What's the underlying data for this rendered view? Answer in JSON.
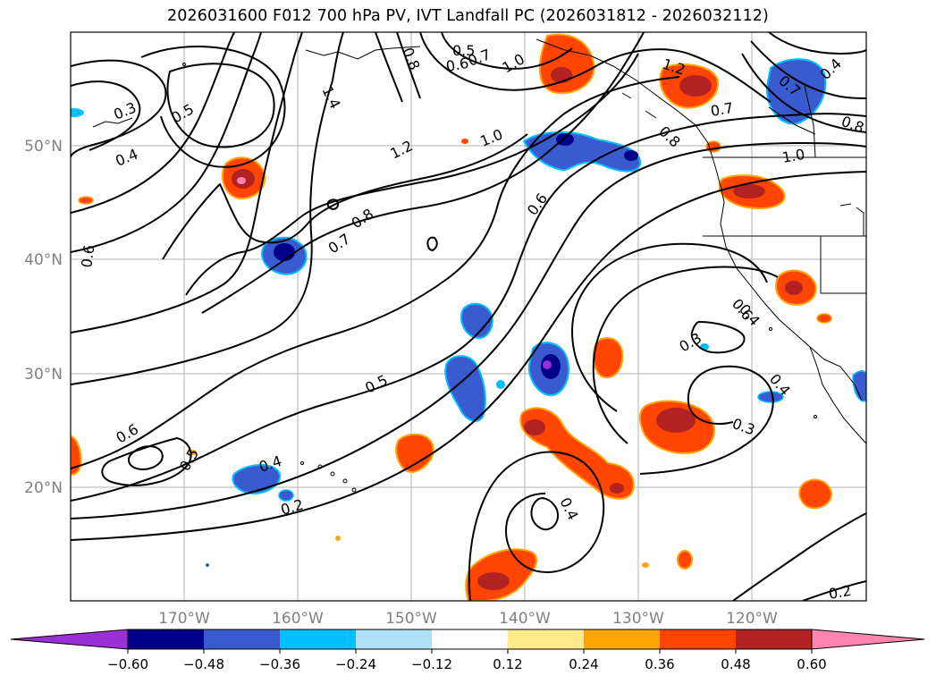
{
  "title": "2026031600 F012 700 hPa PV, IVT Landfall PC (2026031812 - 2026032112)",
  "axes": {
    "x_ticks": [
      "170°W",
      "160°W",
      "150°W",
      "140°W",
      "130°W",
      "120°W"
    ],
    "y_ticks": [
      "50°N",
      "40°N",
      "30°N",
      "20°N"
    ]
  },
  "colorbar": {
    "colors": [
      "#9b30d9",
      "#00008b",
      "#3a5bcf",
      "#00bfff",
      "#b0e0f8",
      "#ffffff",
      "#ffe98a",
      "#ffa500",
      "#ff4500",
      "#b22222",
      "#ff85b0"
    ],
    "labels": [
      "−0.60",
      "−0.48",
      "−0.36",
      "−0.24",
      "−0.12",
      "0.12",
      "0.24",
      "0.36",
      "0.48",
      "0.60"
    ]
  },
  "contour_labels": [
    "0.3",
    "0.5",
    "0.4",
    "0.6",
    "0.8",
    "0.5",
    "0.6",
    "1.0",
    "1.4",
    "0.7",
    "1.2",
    "1.2",
    "0.4",
    "0.7",
    "0.8",
    "1.0",
    "0.7",
    "0.8",
    "1.0",
    "0.6",
    "0.8",
    "0.7",
    "0.6",
    "0.5",
    "0.5",
    "0.6",
    "0.4",
    "0.2",
    "0.4",
    "0.3",
    "0.3",
    "0.4",
    "0.4",
    "0.2"
  ]
}
